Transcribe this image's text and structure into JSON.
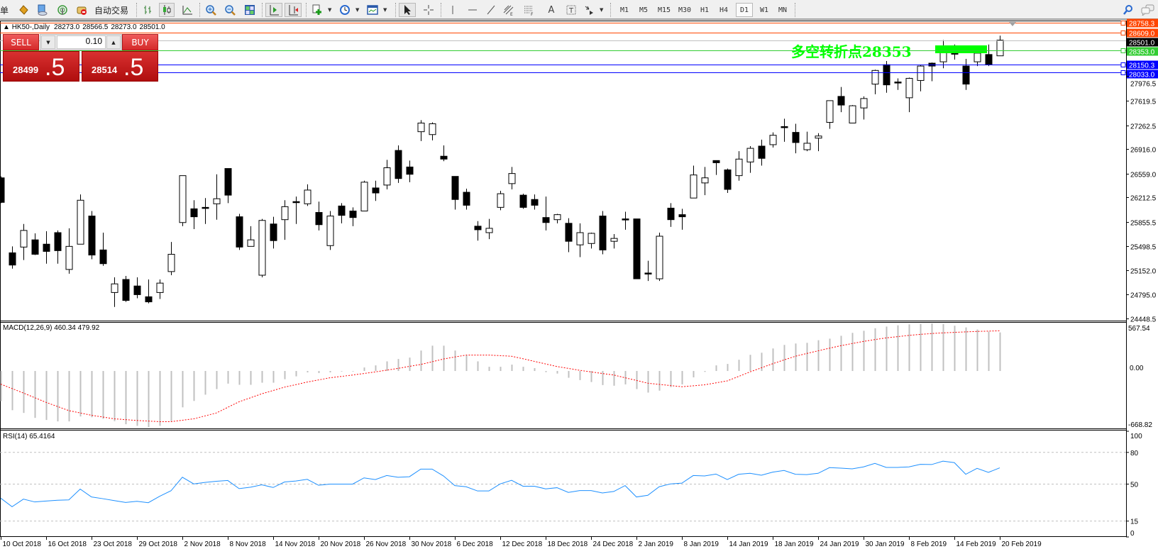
{
  "toolbar": {
    "truncated_label": "单",
    "auto_trading_label": "自动交易",
    "icons": [
      "market-watch-icon",
      "navigator-icon",
      "signals-icon",
      "auto-trading-icon",
      "bar-chart-icon",
      "candlestick-icon",
      "line-chart-icon",
      "zoom-in-icon",
      "zoom-out-icon",
      "tile-windows-icon",
      "auto-scroll-icon",
      "chart-shift-icon",
      "indicators-icon",
      "periods-icon",
      "templates-icon",
      "cursor-icon",
      "crosshair-icon",
      "vertical-line-icon",
      "horizontal-line-icon",
      "trendline-icon",
      "equidistant-channel-icon",
      "fibonacci-icon",
      "text-icon",
      "text-label-icon",
      "arrows-icon",
      "search-icon",
      "chat-icon"
    ],
    "timeframes": [
      "M1",
      "M5",
      "M15",
      "M30",
      "H1",
      "H4",
      "D1",
      "W1",
      "MN"
    ],
    "active_timeframe": "D1"
  },
  "chart": {
    "symbol": "HK50-,Daily",
    "ohlc": [
      "28273.0",
      "28566.5",
      "28273.0",
      "28501.0"
    ],
    "annotation_text": "多空转折点28353",
    "annotation_color": "#00ff00",
    "price_ticks": [
      "27976.5",
      "27619.5",
      "27262.5",
      "26916.0",
      "26559.0",
      "26212.5",
      "25855.5",
      "25498.5",
      "25152.0",
      "24795.0",
      "24448.5"
    ],
    "price_tick_values": [
      27976.5,
      27619.5,
      27262.5,
      26916.0,
      26559.0,
      26212.5,
      25855.5,
      25498.5,
      25152.0,
      24795.0,
      24448.5
    ],
    "hlines": [
      {
        "label": "28758.3",
        "value": 28758.3,
        "color": "#ff4500",
        "text_color": "#ffffff"
      },
      {
        "label": "28609.0",
        "value": 28609.0,
        "color": "#ff4500",
        "text_color": "#ffffff"
      },
      {
        "label": "28501.0",
        "value": 28501.0,
        "color": "#c0c0c0",
        "box": "#000000",
        "text_color": "#ffffff"
      },
      {
        "label": "28353.0",
        "value": 28353.0,
        "color": "#32cd32",
        "text_color": "#ffffff"
      },
      {
        "label": "28150.3",
        "value": 28150.3,
        "color": "#0000ff",
        "text_color": "#ffffff"
      },
      {
        "label": "28033.0",
        "value": 28033.0,
        "color": "#0000ff",
        "text_color": "#ffffff"
      }
    ],
    "zone": {
      "color": "#00ff00",
      "from_bar": 82,
      "to_bar": 87,
      "price_low": 28311,
      "price_high": 28425
    },
    "macd_label": "MACD(12,26,9) 460.34 479.92",
    "macd_axis": [
      "567.54",
      "0.00",
      "-668.82"
    ],
    "rsi_label": "RSI(14) 65.4164",
    "rsi_axis": [
      "100",
      "80",
      "50",
      "15",
      "0"
    ],
    "rsi_levels": [
      80,
      50,
      15
    ],
    "date_labels": [
      "10 Oct 2018",
      "16 Oct 2018",
      "23 Oct 2018",
      "29 Oct 2018",
      "2 Nov 2018",
      "8 Nov 2018",
      "14 Nov 2018",
      "20 Nov 2018",
      "26 Nov 2018",
      "30 Nov 2018",
      "6 Dec 2018",
      "12 Dec 2018",
      "18 Dec 2018",
      "24 Dec 2018",
      "2 Jan 2019",
      "8 Jan 2019",
      "14 Jan 2019",
      "18 Jan 2019",
      "24 Jan 2019",
      "30 Jan 2019",
      "8 Feb 2019",
      "14 Feb 2019",
      "20 Feb 2019"
    ]
  },
  "trade_panel": {
    "sell_label": "SELL",
    "buy_label": "BUY",
    "lot": "0.10",
    "sell_main": "28499",
    "sell_frac": ".5",
    "buy_main": "28514",
    "buy_frac": ".5",
    "color": "#d42a2a"
  },
  "chart_data": [
    {
      "type": "candlestick",
      "title": "HK50-,Daily",
      "ylim": [
        24417,
        28776
      ],
      "x_tick_every": 4,
      "open": [
        26496,
        25404,
        25488,
        25593,
        25530,
        25698,
        25162,
        25530,
        25940,
        25446,
        24826,
        25016,
        24921,
        24764,
        24826,
        25131,
        25845,
        26045,
        26066,
        26118,
        26632,
        25929,
        25498,
        25078,
        25824,
        25887,
        26150,
        26118,
        25992,
        25509,
        26086,
        26013,
        26013,
        26349,
        26391,
        26895,
        26654,
        27168,
        27126,
        26811,
        26517,
        26286,
        25792,
        25698,
        26066,
        26412,
        26244,
        26181,
        25918,
        25887,
        25834,
        25520,
        25540,
        25940,
        25572,
        25898,
        25898,
        25110,
        25026,
        26055,
        25960,
        26202,
        26422,
        26748,
        26612,
        26528,
        26727,
        26958,
        26979,
        27242,
        27158,
        26906,
        27074,
        27304,
        27682,
        27294,
        27514,
        27861,
        28144,
        27892,
        27662,
        27914,
        28166,
        28186,
        28312,
        28124,
        28186,
        28292,
        28273
      ],
      "high": [
        26517,
        25498,
        25824,
        25688,
        25719,
        25730,
        25761,
        26254,
        26013,
        25698,
        25047,
        25068,
        25047,
        25016,
        25016,
        25562,
        26528,
        26170,
        26202,
        26548,
        26632,
        25971,
        25792,
        25898,
        25929,
        26170,
        26223,
        26402,
        26150,
        26013,
        26128,
        26066,
        26454,
        26454,
        26758,
        26968,
        26748,
        27336,
        27304,
        26968,
        26517,
        26338,
        25866,
        25898,
        26307,
        26654,
        26265,
        26254,
        26223,
        25971,
        25908,
        25834,
        25698,
        26013,
        25677,
        26002,
        25898,
        25288,
        25698,
        26128,
        26045,
        26674,
        26654,
        26748,
        26632,
        26884,
        26958,
        27052,
        27158,
        27357,
        27284,
        27168,
        27147,
        27620,
        27819,
        27556,
        27682,
        28071,
        28197,
        27945,
        27956,
        28144,
        28176,
        28502,
        28438,
        28228,
        28344,
        28438,
        28566.5
      ],
      "low": [
        26128,
        25173,
        25299,
        25372,
        25246,
        25246,
        25100,
        25530,
        25310,
        25215,
        24616,
        24690,
        24742,
        24669,
        24732,
        25078,
        25792,
        25750,
        25824,
        25887,
        26128,
        25446,
        25498,
        25047,
        25467,
        25593,
        25824,
        26086,
        25730,
        25446,
        25834,
        25792,
        26013,
        26160,
        26328,
        26422,
        26433,
        27032,
        27042,
        26738,
        26034,
        26034,
        25582,
        25604,
        26024,
        26328,
        26045,
        26034,
        25730,
        25834,
        25414,
        25341,
        25467,
        25383,
        25467,
        25740,
        25026,
        24994,
        24994,
        25782,
        25740,
        26202,
        26244,
        26538,
        26276,
        26454,
        26570,
        26674,
        26937,
        27021,
        26853,
        26884,
        26884,
        27210,
        27452,
        27294,
        27346,
        27714,
        27735,
        27777,
        27452,
        27756,
        27903,
        28092,
        28218,
        27777,
        28124,
        28124,
        28273
      ],
      "close": [
        26139,
        25226,
        25730,
        25383,
        25425,
        25436,
        25498,
        26170,
        25372,
        25246,
        24952,
        24711,
        24795,
        24690,
        24963,
        25383,
        26528,
        25929,
        26060,
        26192,
        26244,
        25488,
        25593,
        25876,
        25582,
        26076,
        26139,
        26318,
        25814,
        25940,
        25950,
        25918,
        26433,
        26276,
        26643,
        26486,
        26548,
        27294,
        27284,
        26769,
        26181,
        26097,
        25740,
        25761,
        26265,
        26559,
        26066,
        26097,
        25845,
        25960,
        25572,
        25698,
        25688,
        25446,
        25614,
        25887,
        25026,
        25100,
        25646,
        25887,
        25929,
        26538,
        26496,
        26716,
        26328,
        26769,
        26926,
        26780,
        27116,
        27231,
        27010,
        27000,
        27105,
        27620,
        27556,
        27546,
        27651,
        28060,
        27850,
        27882,
        27945,
        28124,
        28124,
        28334,
        28302,
        27861,
        28312,
        28144,
        28501
      ]
    },
    {
      "type": "bar+line",
      "title": "MACD(12,26,9)",
      "ylim": [
        -668.82,
        567.54
      ],
      "series": [
        {
          "name": "MACD",
          "type": "bar",
          "color": "#c0c0c0",
          "values": [
            -361,
            -468,
            -501,
            -560,
            -585,
            -602,
            -602,
            -543,
            -552,
            -571,
            -599,
            -636,
            -655,
            -668.82,
            -655,
            -599,
            -434,
            -358,
            -283,
            -216,
            -151,
            -165,
            -165,
            -140,
            -140,
            -98,
            -64,
            -17,
            -25,
            -17,
            -6,
            -6,
            42,
            67,
            115,
            143,
            160,
            244,
            302,
            302,
            244,
            188,
            115,
            50,
            50,
            76,
            50,
            34,
            -14,
            -31,
            -81,
            -109,
            -132,
            -168,
            -176,
            -160,
            -216,
            -258,
            -235,
            -193,
            -160,
            -76,
            -11,
            67,
            84,
            134,
            193,
            218,
            269,
            311,
            328,
            336,
            367,
            386,
            420,
            455,
            480,
            510,
            530,
            545,
            556,
            562,
            567.54,
            560,
            540,
            520,
            495,
            470,
            460.34
          ]
        },
        {
          "name": "Signal",
          "type": "line",
          "style": "dotted",
          "color": "#ff0000",
          "values": [
            -157,
            -210,
            -263,
            -319,
            -375,
            -424,
            -473,
            -501,
            -529,
            -550,
            -571,
            -581,
            -591,
            -598,
            -605,
            -605,
            -588,
            -571,
            -536,
            -501,
            -434,
            -367,
            -320,
            -272,
            -233,
            -193,
            -163,
            -132,
            -107,
            -81,
            -65,
            -48,
            -30,
            -11,
            10,
            31,
            55,
            78,
            110,
            143,
            167,
            190,
            190,
            190,
            183,
            176,
            146,
            115,
            84,
            53,
            31,
            8,
            -11,
            -30,
            -48,
            -81,
            -113,
            -146,
            -160,
            -174,
            -188,
            -177,
            -165,
            -142,
            -118,
            -65,
            -11,
            38,
            87,
            132,
            176,
            209,
            241,
            272,
            302,
            328,
            353,
            375,
            395,
            410,
            425,
            437,
            447,
            455,
            461,
            467,
            472,
            476,
            479.92
          ]
        }
      ]
    },
    {
      "type": "line",
      "title": "RSI(14)",
      "ylim": [
        0,
        100
      ],
      "color": "#1e90ff",
      "values": [
        36.7,
        28.6,
        35.8,
        33.1,
        34.0,
        34.7,
        35.1,
        45.3,
        37.8,
        36.2,
        34.4,
        32.6,
        33.7,
        32.4,
        38.5,
        43.7,
        56.5,
        50.2,
        51.6,
        52.7,
        53.4,
        45.7,
        47.1,
        49.3,
        46.8,
        52.0,
        52.9,
        54.5,
        48.9,
        50.0,
        50.0,
        50.0,
        55.9,
        54.3,
        58.1,
        56.5,
        57.0,
        64.2,
        64.2,
        57.7,
        48.6,
        47.5,
        43.5,
        43.5,
        50.2,
        53.6,
        48.0,
        48.0,
        45.5,
        46.6,
        42.1,
        43.9,
        43.9,
        41.6,
        43.0,
        48.6,
        37.8,
        39.4,
        47.5,
        50.2,
        50.9,
        58.1,
        57.7,
        59.5,
        54.3,
        59.3,
        60.2,
        58.4,
        61.3,
        62.9,
        59.3,
        59.0,
        60.2,
        65.6,
        65.1,
        64.4,
        66.3,
        69.6,
        65.8,
        65.8,
        66.3,
        68.7,
        68.5,
        71.7,
        70.3,
        59.3,
        64.9,
        61.1,
        65.4164
      ]
    }
  ]
}
